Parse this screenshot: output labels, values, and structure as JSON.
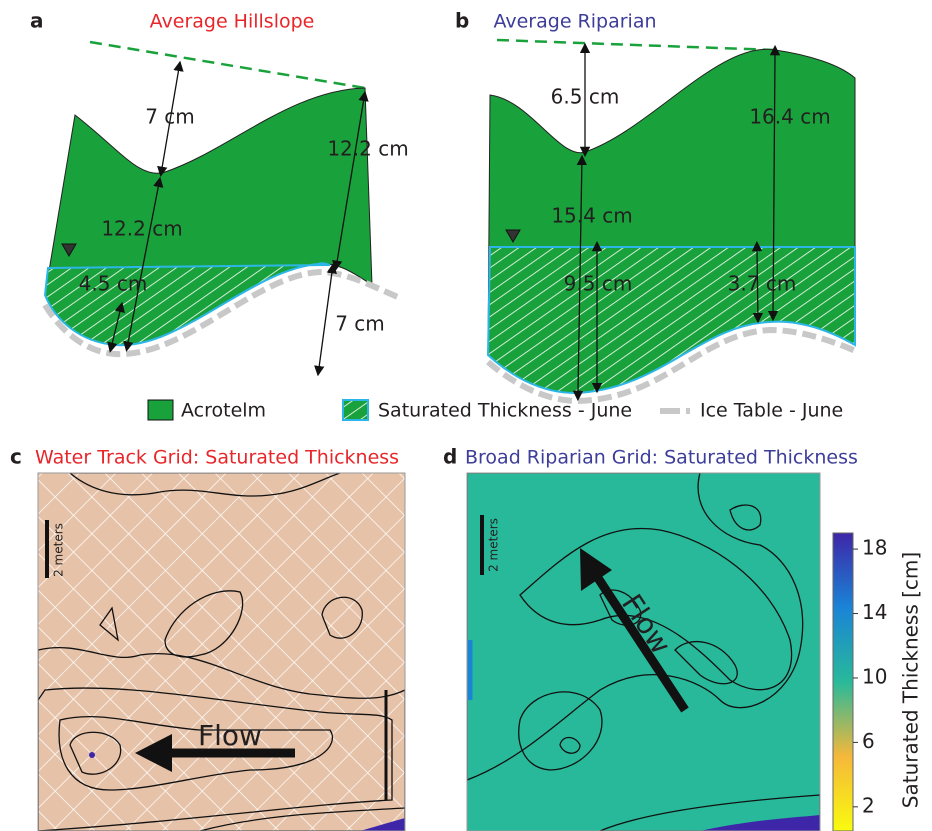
{
  "panels": [
    {
      "letter": "a",
      "title": "Average Hillslope",
      "labels": [
        "7 cm",
        "12.2 cm",
        "12.2 cm",
        "4.5 cm",
        "7 cm"
      ]
    },
    {
      "letter": "b",
      "title": "Average Riparian",
      "labels": [
        "6.5 cm",
        "16.4 cm",
        "15.4 cm",
        "9.5 cm",
        "3.7 cm"
      ]
    },
    {
      "letter": "c",
      "title": "Water Track Grid: Saturated Thickness",
      "scale_label": "2 meters",
      "flow_label": "Flow"
    },
    {
      "letter": "d",
      "title": "Broad Riparian Grid: Saturated Thickness",
      "scale_label": "2 meters",
      "flow_label": "Flow"
    }
  ],
  "legend": [
    "Acrotelm",
    "Saturated Thickness - June",
    "Ice Table - June"
  ],
  "colorbar": {
    "label": "Saturated Thickness [cm]",
    "range": [
      0.5,
      19
    ],
    "ticks": [
      2,
      6,
      10,
      14,
      18
    ]
  }
}
